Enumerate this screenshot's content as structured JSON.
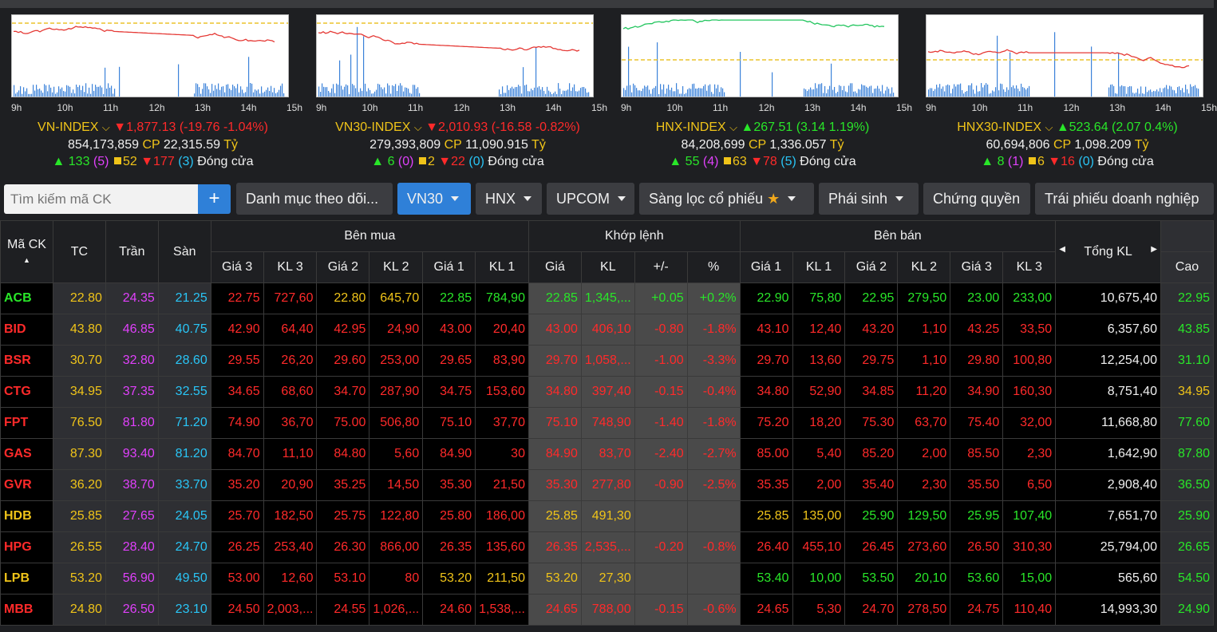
{
  "indices": [
    {
      "name": "VN-INDEX",
      "arrow": "down",
      "value": "1,877.13",
      "change": "(-19.76 -1.04%)",
      "volume": "854,173,859",
      "cp_label": "CP",
      "value_ty": "22,315.59",
      "ty_label": "Tỷ",
      "up": "133",
      "ceil": "(5)",
      "ref": "52",
      "down": "177",
      "floor": "(3)",
      "status": "Đóng cửa",
      "ticks": [
        "9h",
        "10h",
        "11h",
        "12h",
        "13h",
        "14h",
        "15h"
      ]
    },
    {
      "name": "VN30-INDEX",
      "arrow": "down",
      "value": "2,010.93",
      "change": "(-16.58 -0.82%)",
      "volume": "279,393,809",
      "cp_label": "CP",
      "value_ty": "11,090.915",
      "ty_label": "Tỷ",
      "up": "6",
      "ceil": "(0)",
      "ref": "2",
      "down": "22",
      "floor": "(0)",
      "status": "Đóng cửa",
      "ticks": [
        "9h",
        "10h",
        "11h",
        "12h",
        "13h",
        "14h",
        "15h"
      ]
    },
    {
      "name": "HNX-INDEX",
      "arrow": "up",
      "value": "267.51",
      "change": "(3.14 1.19%)",
      "volume": "84,208,699",
      "cp_label": "CP",
      "value_ty": "1,336.057",
      "ty_label": "Tỷ",
      "up": "55",
      "ceil": "(4)",
      "ref": "63",
      "down": "78",
      "floor": "(5)",
      "status": "Đóng cửa",
      "ticks": [
        "9h",
        "10h",
        "11h",
        "12h",
        "13h",
        "14h",
        "15h"
      ]
    },
    {
      "name": "HNX30-INDEX",
      "arrow": "up",
      "value": "523.64",
      "change": "(2.07 0.4%)",
      "volume": "60,694,806",
      "cp_label": "CP",
      "value_ty": "1,098.209",
      "ty_label": "Tỷ",
      "up": "8",
      "ceil": "(1)",
      "ref": "6",
      "down": "16",
      "floor": "(0)",
      "status": "Đóng cửa",
      "ticks": [
        "9h",
        "10h",
        "11h",
        "12h",
        "13h",
        "14h",
        "15h"
      ]
    }
  ],
  "toolbar": {
    "search_placeholder": "Tìm kiếm mã CK",
    "plus": "+",
    "watchlist": "Danh mục theo dõi...",
    "vn30": "VN30",
    "hnx": "HNX",
    "upcom": "UPCOM",
    "screener": "Sàng lọc cổ phiếu",
    "derivatives": "Phái sinh",
    "warrants": "Chứng quyền",
    "bonds": "Trái phiếu doanh nghiệp"
  },
  "table": {
    "group_headers": {
      "buy": "Bên mua",
      "match": "Khớp lệnh",
      "sell": "Bên bán",
      "total": "Tổng KL"
    },
    "cols": {
      "sym": "Mã CK",
      "tc": "TC",
      "tran": "Trần",
      "san": "Sàn",
      "gia3": "Giá 3",
      "kl3": "KL 3",
      "gia2": "Giá 2",
      "kl2": "KL 2",
      "gia1": "Giá 1",
      "kl1": "KL 1",
      "gia": "Giá",
      "kl": "KL",
      "chg": "+/-",
      "pct": "%",
      "cao": "Cao"
    },
    "rows": [
      {
        "sym": "ACB",
        "tc": "22.80",
        "tran": "24.35",
        "san": "21.25",
        "b": [
          "22.75",
          "727,60",
          "22.80",
          "645,70",
          "22.85",
          "784,90"
        ],
        "m": [
          "22.85",
          "1,345,...",
          "+0.05",
          "+0.2%"
        ],
        "s": [
          "22.90",
          "75,80",
          "22.95",
          "279,50",
          "23.00",
          "233,00"
        ],
        "total": "10,675,40",
        "cao": "22.95",
        "c": {
          "sym": "g",
          "b": [
            "r",
            "r",
            "y",
            "y",
            "g",
            "g"
          ],
          "m": "g",
          "s": [
            "g",
            "g",
            "g",
            "g",
            "g",
            "g"
          ],
          "cao": "g"
        }
      },
      {
        "sym": "BID",
        "tc": "43.80",
        "tran": "46.85",
        "san": "40.75",
        "b": [
          "42.90",
          "64,40",
          "42.95",
          "24,90",
          "43.00",
          "20,40"
        ],
        "m": [
          "43.00",
          "406,10",
          "-0.80",
          "-1.8%"
        ],
        "s": [
          "43.10",
          "12,40",
          "43.20",
          "1,10",
          "43.25",
          "33,50"
        ],
        "total": "6,357,60",
        "cao": "43.85",
        "c": {
          "sym": "r",
          "b": [
            "r",
            "r",
            "r",
            "r",
            "r",
            "r"
          ],
          "m": "r",
          "s": [
            "r",
            "r",
            "r",
            "r",
            "r",
            "r"
          ],
          "cao": "g"
        }
      },
      {
        "sym": "BSR",
        "tc": "30.70",
        "tran": "32.80",
        "san": "28.60",
        "b": [
          "29.55",
          "26,20",
          "29.60",
          "253,00",
          "29.65",
          "83,90"
        ],
        "m": [
          "29.70",
          "1,058,...",
          "-1.00",
          "-3.3%"
        ],
        "s": [
          "29.70",
          "13,60",
          "29.75",
          "1,10",
          "29.80",
          "100,80"
        ],
        "total": "12,254,00",
        "cao": "31.10",
        "c": {
          "sym": "r",
          "b": [
            "r",
            "r",
            "r",
            "r",
            "r",
            "r"
          ],
          "m": "r",
          "s": [
            "r",
            "r",
            "r",
            "r",
            "r",
            "r"
          ],
          "cao": "g"
        }
      },
      {
        "sym": "CTG",
        "tc": "34.95",
        "tran": "37.35",
        "san": "32.55",
        "b": [
          "34.65",
          "68,60",
          "34.70",
          "287,90",
          "34.75",
          "153,60"
        ],
        "m": [
          "34.80",
          "397,40",
          "-0.15",
          "-0.4%"
        ],
        "s": [
          "34.80",
          "52,90",
          "34.85",
          "11,20",
          "34.90",
          "160,30"
        ],
        "total": "8,751,40",
        "cao": "34.95",
        "c": {
          "sym": "r",
          "b": [
            "r",
            "r",
            "r",
            "r",
            "r",
            "r"
          ],
          "m": "r",
          "s": [
            "r",
            "r",
            "r",
            "r",
            "r",
            "r"
          ],
          "cao": "y"
        }
      },
      {
        "sym": "FPT",
        "tc": "76.50",
        "tran": "81.80",
        "san": "71.20",
        "b": [
          "74.90",
          "36,70",
          "75.00",
          "506,80",
          "75.10",
          "37,70"
        ],
        "m": [
          "75.10",
          "748,90",
          "-1.40",
          "-1.8%"
        ],
        "s": [
          "75.20",
          "18,20",
          "75.30",
          "63,70",
          "75.40",
          "32,00"
        ],
        "total": "11,668,80",
        "cao": "77.60",
        "c": {
          "sym": "r",
          "b": [
            "r",
            "r",
            "r",
            "r",
            "r",
            "r"
          ],
          "m": "r",
          "s": [
            "r",
            "r",
            "r",
            "r",
            "r",
            "r"
          ],
          "cao": "g"
        }
      },
      {
        "sym": "GAS",
        "tc": "87.30",
        "tran": "93.40",
        "san": "81.20",
        "b": [
          "84.70",
          "11,10",
          "84.80",
          "5,60",
          "84.90",
          "30"
        ],
        "m": [
          "84.90",
          "83,70",
          "-2.40",
          "-2.7%"
        ],
        "s": [
          "85.00",
          "5,40",
          "85.20",
          "2,00",
          "85.50",
          "2,30"
        ],
        "total": "1,642,90",
        "cao": "87.80",
        "c": {
          "sym": "r",
          "b": [
            "r",
            "r",
            "r",
            "r",
            "r",
            "r"
          ],
          "m": "r",
          "s": [
            "r",
            "r",
            "r",
            "r",
            "r",
            "r"
          ],
          "cao": "g"
        }
      },
      {
        "sym": "GVR",
        "tc": "36.20",
        "tran": "38.70",
        "san": "33.70",
        "b": [
          "35.20",
          "20,90",
          "35.25",
          "14,50",
          "35.30",
          "21,50"
        ],
        "m": [
          "35.30",
          "277,80",
          "-0.90",
          "-2.5%"
        ],
        "s": [
          "35.35",
          "2,00",
          "35.40",
          "2,30",
          "35.50",
          "6,50"
        ],
        "total": "2,908,40",
        "cao": "36.50",
        "c": {
          "sym": "r",
          "b": [
            "r",
            "r",
            "r",
            "r",
            "r",
            "r"
          ],
          "m": "r",
          "s": [
            "r",
            "r",
            "r",
            "r",
            "r",
            "r"
          ],
          "cao": "g"
        }
      },
      {
        "sym": "HDB",
        "tc": "25.85",
        "tran": "27.65",
        "san": "24.05",
        "b": [
          "25.70",
          "182,50",
          "25.75",
          "122,80",
          "25.80",
          "186,00"
        ],
        "m": [
          "25.85",
          "491,30",
          "",
          ""
        ],
        "s": [
          "25.85",
          "135,00",
          "25.90",
          "129,50",
          "25.95",
          "107,40"
        ],
        "total": "7,651,70",
        "cao": "25.90",
        "c": {
          "sym": "y",
          "b": [
            "r",
            "r",
            "r",
            "r",
            "r",
            "r"
          ],
          "m": "y",
          "s": [
            "y",
            "y",
            "g",
            "g",
            "g",
            "g"
          ],
          "cao": "g"
        }
      },
      {
        "sym": "HPG",
        "tc": "26.55",
        "tran": "28.40",
        "san": "24.70",
        "b": [
          "26.25",
          "253,40",
          "26.30",
          "866,00",
          "26.35",
          "135,60"
        ],
        "m": [
          "26.35",
          "2,535,...",
          "-0.20",
          "-0.8%"
        ],
        "s": [
          "26.40",
          "455,10",
          "26.45",
          "273,60",
          "26.50",
          "310,30"
        ],
        "total": "25,794,00",
        "cao": "26.65",
        "c": {
          "sym": "r",
          "b": [
            "r",
            "r",
            "r",
            "r",
            "r",
            "r"
          ],
          "m": "r",
          "s": [
            "r",
            "r",
            "r",
            "r",
            "r",
            "r"
          ],
          "cao": "g"
        }
      },
      {
        "sym": "LPB",
        "tc": "53.20",
        "tran": "56.90",
        "san": "49.50",
        "b": [
          "53.00",
          "12,60",
          "53.10",
          "80",
          "53.20",
          "211,50"
        ],
        "m": [
          "53.20",
          "27,30",
          "",
          ""
        ],
        "s": [
          "53.40",
          "10,00",
          "53.50",
          "20,10",
          "53.60",
          "15,00"
        ],
        "total": "565,60",
        "cao": "54.50",
        "c": {
          "sym": "y",
          "b": [
            "r",
            "r",
            "r",
            "r",
            "y",
            "y"
          ],
          "m": "y",
          "s": [
            "g",
            "g",
            "g",
            "g",
            "g",
            "g"
          ],
          "cao": "g"
        }
      },
      {
        "sym": "MBB",
        "tc": "24.80",
        "tran": "26.50",
        "san": "23.10",
        "b": [
          "24.50",
          "2,003,...",
          "24.55",
          "1,026,...",
          "24.60",
          "1,538,..."
        ],
        "m": [
          "24.65",
          "788,00",
          "-0.15",
          "-0.6%"
        ],
        "s": [
          "24.65",
          "5,30",
          "24.70",
          "278,50",
          "24.75",
          "110,40"
        ],
        "total": "14,993,30",
        "cao": "24.90",
        "c": {
          "sym": "r",
          "b": [
            "r",
            "r",
            "r",
            "r",
            "r",
            "r"
          ],
          "m": "r",
          "s": [
            "r",
            "r",
            "r",
            "r",
            "r",
            "r"
          ],
          "cao": "g"
        }
      }
    ]
  },
  "colors": {
    "red": "#ff2a2a",
    "green": "#29e629",
    "yellow": "#f0c419",
    "purple": "#e040fb",
    "cyan": "#29c5f6"
  }
}
